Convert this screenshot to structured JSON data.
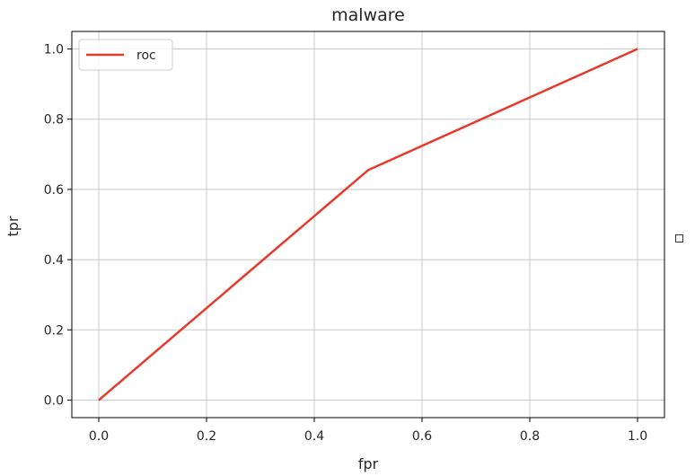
{
  "chart_data": {
    "type": "line",
    "title": "malware",
    "xlabel": "fpr",
    "ylabel": "tpr",
    "xlim": [
      -0.05,
      1.05
    ],
    "ylim": [
      -0.05,
      1.05
    ],
    "xticks": [
      0.0,
      0.2,
      0.4,
      0.6,
      0.8,
      1.0
    ],
    "yticks": [
      0.0,
      0.2,
      0.4,
      0.6,
      0.8,
      1.0
    ],
    "xtick_labels": [
      "0.0",
      "0.2",
      "0.4",
      "0.6",
      "0.8",
      "1.0"
    ],
    "ytick_labels": [
      "0.0",
      "0.2",
      "0.4",
      "0.6",
      "0.8",
      "1.0"
    ],
    "grid": true,
    "legend": {
      "position": "upper-left",
      "entries": [
        "roc"
      ]
    },
    "series": [
      {
        "name": "roc",
        "color": "#e8392d",
        "x": [
          0.0,
          0.5,
          1.0
        ],
        "y": [
          0.0,
          0.655,
          1.0
        ]
      }
    ]
  }
}
